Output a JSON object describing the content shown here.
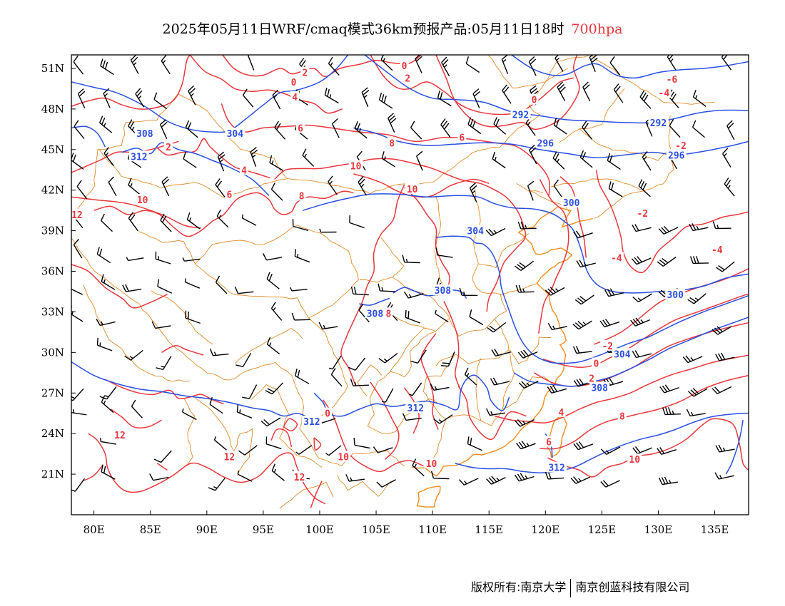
{
  "title": {
    "main": "2025年05月11日WRF/cmaq模式36km预报产品:05月11日18时",
    "level": "700hpa"
  },
  "map": {
    "lon_range": [
      78,
      138
    ],
    "lat_range": [
      18,
      52
    ],
    "lon_ticks": [
      80,
      85,
      90,
      95,
      100,
      105,
      110,
      115,
      120,
      125,
      130,
      135
    ],
    "lon_tick_labels": [
      "80E",
      "85E",
      "90E",
      "95E",
      "100E",
      "105E",
      "110E",
      "115E",
      "120E",
      "125E",
      "130E",
      "135E"
    ],
    "lat_ticks": [
      21,
      24,
      27,
      30,
      33,
      36,
      39,
      42,
      45,
      48,
      51
    ],
    "lat_tick_labels": [
      "21N",
      "24N",
      "27N",
      "30N",
      "33N",
      "36N",
      "39N",
      "42N",
      "45N",
      "48N",
      "51N"
    ],
    "colors": {
      "temperature": "#e8373c",
      "geopotential": "#2a4fe0",
      "boundary": "#e08a2c",
      "coast": "#f08c1e",
      "wind": "#000000"
    },
    "geopotential_labels": [
      {
        "text": "308",
        "lon": 84.5,
        "lat": 46.2
      },
      {
        "text": "304",
        "lon": 92.5,
        "lat": 46.2
      },
      {
        "text": "312",
        "lon": 84.0,
        "lat": 44.5
      },
      {
        "text": "292",
        "lon": 117.8,
        "lat": 47.6
      },
      {
        "text": "292",
        "lon": 130.0,
        "lat": 47.0
      },
      {
        "text": "296",
        "lon": 120.0,
        "lat": 45.5
      },
      {
        "text": "296",
        "lon": 131.6,
        "lat": 44.6
      },
      {
        "text": "300",
        "lon": 122.3,
        "lat": 41.1
      },
      {
        "text": "304",
        "lon": 113.8,
        "lat": 39.0
      },
      {
        "text": "300",
        "lon": 131.5,
        "lat": 34.3
      },
      {
        "text": "308",
        "lon": 110.9,
        "lat": 34.6
      },
      {
        "text": "308",
        "lon": 104.9,
        "lat": 32.9
      },
      {
        "text": "304",
        "lon": 126.8,
        "lat": 29.9
      },
      {
        "text": "308",
        "lon": 124.8,
        "lat": 27.4
      },
      {
        "text": "312",
        "lon": 99.3,
        "lat": 24.9
      },
      {
        "text": "312",
        "lon": 108.5,
        "lat": 25.9
      },
      {
        "text": "312",
        "lon": 121.0,
        "lat": 21.5
      }
    ],
    "temperature_labels": [
      {
        "text": "0",
        "lon": 97.7,
        "lat": 50.0
      },
      {
        "text": "2",
        "lon": 98.7,
        "lat": 50.7
      },
      {
        "text": "0",
        "lon": 107.5,
        "lat": 51.2
      },
      {
        "text": "2",
        "lon": 107.8,
        "lat": 50.3
      },
      {
        "text": "0",
        "lon": 119.0,
        "lat": 48.7
      },
      {
        "text": "2",
        "lon": 117.3,
        "lat": 47.6
      },
      {
        "text": "-6",
        "lon": 131.2,
        "lat": 50.2
      },
      {
        "text": "-4",
        "lon": 130.5,
        "lat": 49.2
      },
      {
        "text": "-2",
        "lon": 132.0,
        "lat": 45.3
      },
      {
        "text": "4",
        "lon": 97.8,
        "lat": 48.9
      },
      {
        "text": "6",
        "lon": 98.3,
        "lat": 46.6
      },
      {
        "text": "6",
        "lon": 112.6,
        "lat": 45.9
      },
      {
        "text": "8",
        "lon": 106.4,
        "lat": 45.5
      },
      {
        "text": "10",
        "lon": 103.2,
        "lat": 43.8
      },
      {
        "text": "10",
        "lon": 108.2,
        "lat": 42.1
      },
      {
        "text": "2",
        "lon": 86.6,
        "lat": 45.2
      },
      {
        "text": "4",
        "lon": 93.3,
        "lat": 43.5
      },
      {
        "text": "6",
        "lon": 92.0,
        "lat": 41.7
      },
      {
        "text": "8",
        "lon": 98.4,
        "lat": 41.6
      },
      {
        "text": "10",
        "lon": 84.3,
        "lat": 41.3
      },
      {
        "text": "12",
        "lon": 78.5,
        "lat": 40.2
      },
      {
        "text": "8",
        "lon": 113.7,
        "lat": 39.1
      },
      {
        "text": "-2",
        "lon": 128.6,
        "lat": 40.3
      },
      {
        "text": "-4",
        "lon": 135.2,
        "lat": 37.6
      },
      {
        "text": "-4",
        "lon": 126.3,
        "lat": 37.0
      },
      {
        "text": "8",
        "lon": 106.1,
        "lat": 32.9
      },
      {
        "text": "-2",
        "lon": 125.5,
        "lat": 30.5
      },
      {
        "text": "0",
        "lon": 124.5,
        "lat": 29.2
      },
      {
        "text": "2",
        "lon": 124.1,
        "lat": 28.1
      },
      {
        "text": "4",
        "lon": 121.4,
        "lat": 25.6
      },
      {
        "text": "6",
        "lon": 120.3,
        "lat": 23.4
      },
      {
        "text": "8",
        "lon": 126.8,
        "lat": 25.3
      },
      {
        "text": "10",
        "lon": 127.9,
        "lat": 22.1
      },
      {
        "text": "0",
        "lon": 100.7,
        "lat": 25.5
      },
      {
        "text": "10",
        "lon": 102.1,
        "lat": 22.3
      },
      {
        "text": "10",
        "lon": 109.9,
        "lat": 21.8
      },
      {
        "text": "12",
        "lon": 82.3,
        "lat": 23.9
      },
      {
        "text": "12",
        "lon": 92.0,
        "lat": 22.3
      },
      {
        "text": "12",
        "lon": 98.2,
        "lat": 20.8
      }
    ]
  },
  "copyright": {
    "left": "版权所有:南京大学",
    "right": "南京创蓝科技有限公司"
  }
}
